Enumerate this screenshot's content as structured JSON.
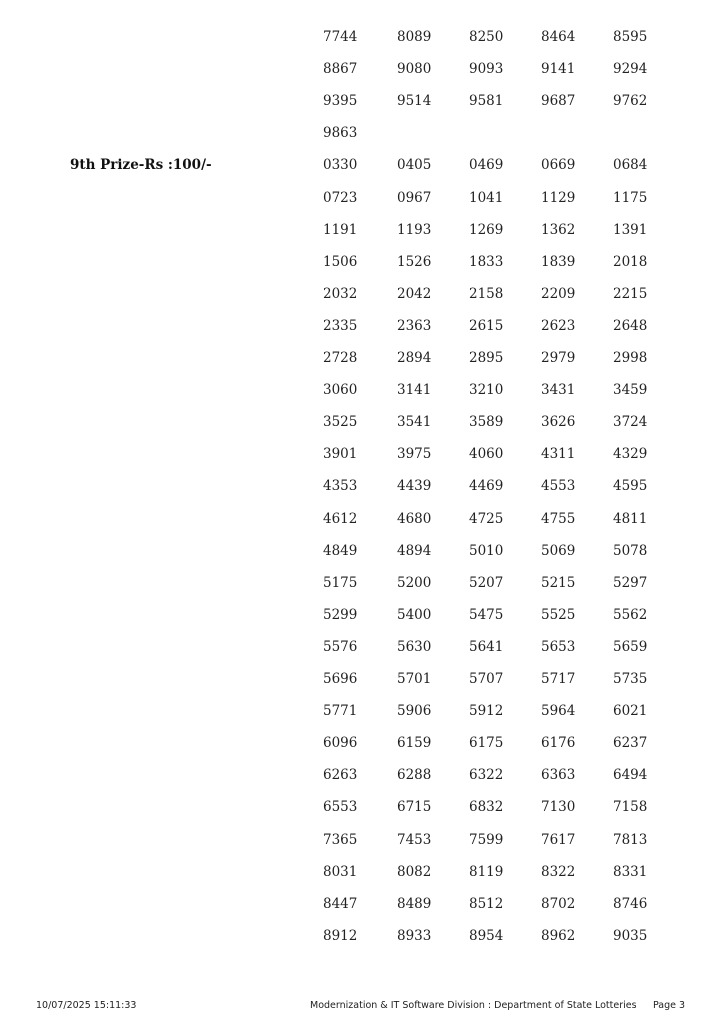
{
  "sections": [
    {
      "label": "",
      "numbers": [
        "7744",
        "8089",
        "8250",
        "8464",
        "8595",
        "8867",
        "9080",
        "9093",
        "9141",
        "9294",
        "9395",
        "9514",
        "9581",
        "9687",
        "9762",
        "9863"
      ]
    },
    {
      "label": "9th Prize-Rs :100/-",
      "numbers": [
        "0330",
        "0405",
        "0469",
        "0669",
        "0684",
        "0723",
        "0967",
        "1041",
        "1129",
        "1175",
        "1191",
        "1193",
        "1269",
        "1362",
        "1391",
        "1506",
        "1526",
        "1833",
        "1839",
        "2018",
        "2032",
        "2042",
        "2158",
        "2209",
        "2215",
        "2335",
        "2363",
        "2615",
        "2623",
        "2648",
        "2728",
        "2894",
        "2895",
        "2979",
        "2998",
        "3060",
        "3141",
        "3210",
        "3431",
        "3459",
        "3525",
        "3541",
        "3589",
        "3626",
        "3724",
        "3901",
        "3975",
        "4060",
        "4311",
        "4329",
        "4353",
        "4439",
        "4469",
        "4553",
        "4595",
        "4612",
        "4680",
        "4725",
        "4755",
        "4811",
        "4849",
        "4894",
        "5010",
        "5069",
        "5078",
        "5175",
        "5200",
        "5207",
        "5215",
        "5297",
        "5299",
        "5400",
        "5475",
        "5525",
        "5562",
        "5576",
        "5630",
        "5641",
        "5653",
        "5659",
        "5696",
        "5701",
        "5707",
        "5717",
        "5735",
        "5771",
        "5906",
        "5912",
        "5964",
        "6021",
        "6096",
        "6159",
        "6175",
        "6176",
        "6237",
        "6263",
        "6288",
        "6322",
        "6363",
        "6494",
        "6553",
        "6715",
        "6832",
        "7130",
        "7158",
        "7365",
        "7453",
        "7599",
        "7617",
        "7813",
        "8031",
        "8082",
        "8119",
        "8322",
        "8331",
        "8447",
        "8489",
        "8512",
        "8702",
        "8746",
        "8912",
        "8933",
        "8954",
        "8962",
        "9035"
      ]
    }
  ],
  "footer": {
    "timestamp": "10/07/2025 15:11:33",
    "organization": "Modernization & IT Software Division : Department of State Lotteries",
    "page": "Page 3"
  }
}
